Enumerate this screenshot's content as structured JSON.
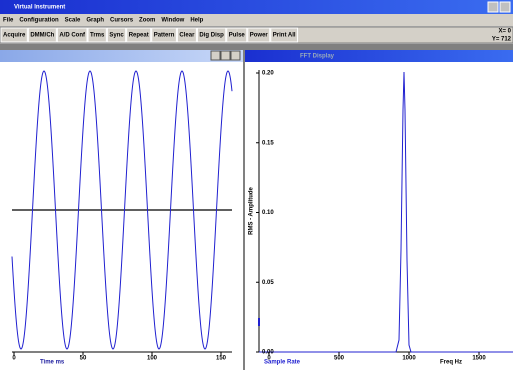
{
  "app": {
    "title": "Virtual Instrument",
    "menu": [
      "File",
      "Configuration",
      "Scale",
      "Graph",
      "Cursors",
      "Zoom",
      "Window",
      "Help"
    ],
    "toolbar": [
      "Acquire",
      "DMM/Ch",
      "A/D Conf",
      "Trms",
      "Sync",
      "Repeat",
      "Pattern",
      "Clear",
      "Dig Disp",
      "Pulse",
      "Power",
      "Print All"
    ],
    "readout": [
      "X= 0",
      "Y= 712"
    ]
  },
  "left_window": {
    "x_ticks": [
      "0",
      "50",
      "100",
      "150"
    ],
    "x_label": "Time ms"
  },
  "right_window": {
    "title": "FFT Display",
    "y_ticks": [
      "0.20",
      "0.15",
      "0.10",
      "0.05",
      "0.00"
    ],
    "x_ticks": [
      "0",
      "500",
      "1000",
      "1500"
    ],
    "y_label": "RMS - Amplitude",
    "x_label": "Freq Hz",
    "status": "Sample Rate"
  }
}
